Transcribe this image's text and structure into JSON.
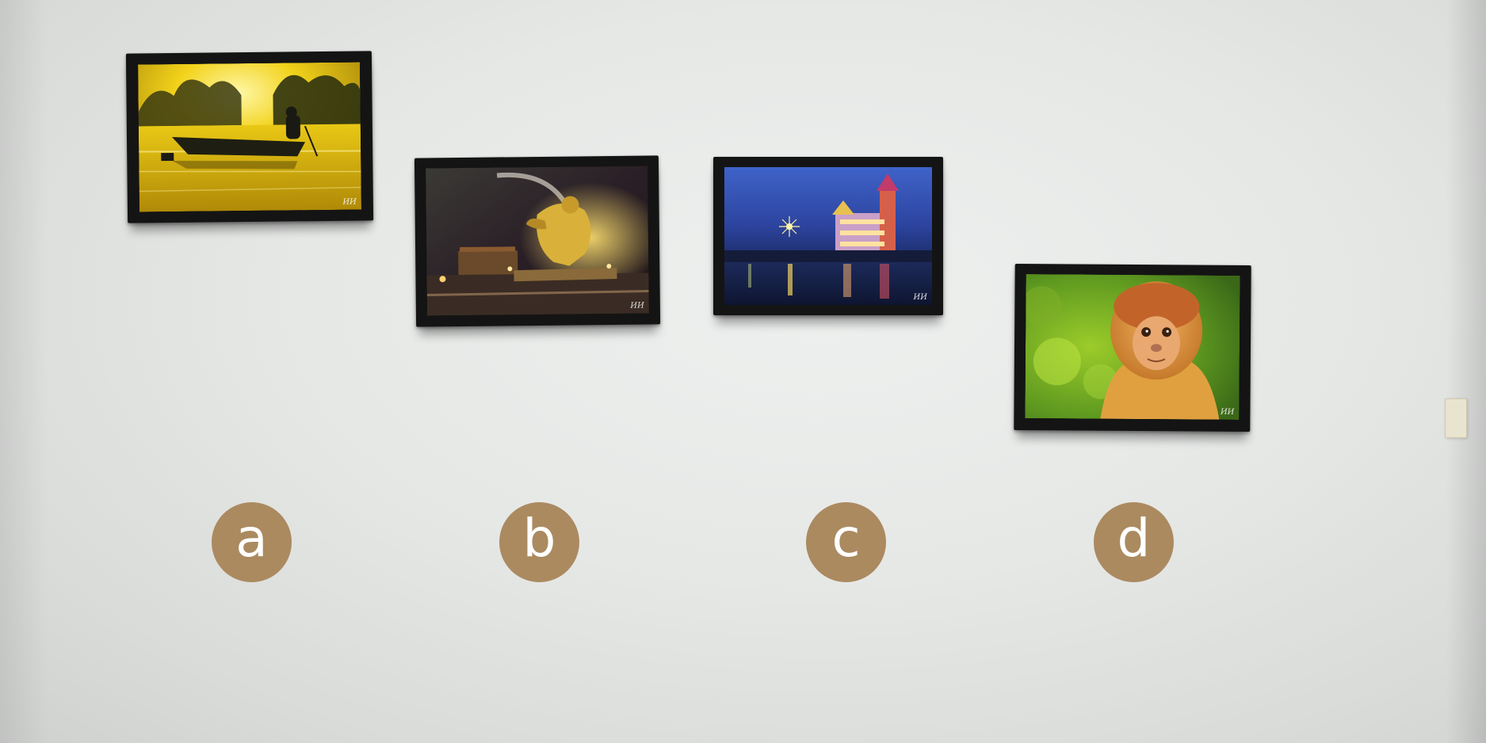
{
  "photos": [
    {
      "label": "a",
      "subject": "fisherman in boat at golden sunrise",
      "signature": "ИИ"
    },
    {
      "label": "b",
      "subject": "monkey statue fountain at night",
      "signature": "ИИ"
    },
    {
      "label": "c",
      "subject": "illuminated temple across river at night",
      "signature": "ИИ"
    },
    {
      "label": "d",
      "subject": "proboscis monkey portrait",
      "signature": "ИИ"
    }
  ],
  "colors": {
    "wall": "#e6e8e6",
    "frame": "#141414",
    "badge": "#ab8a60",
    "badge_text": "#ffffff"
  }
}
